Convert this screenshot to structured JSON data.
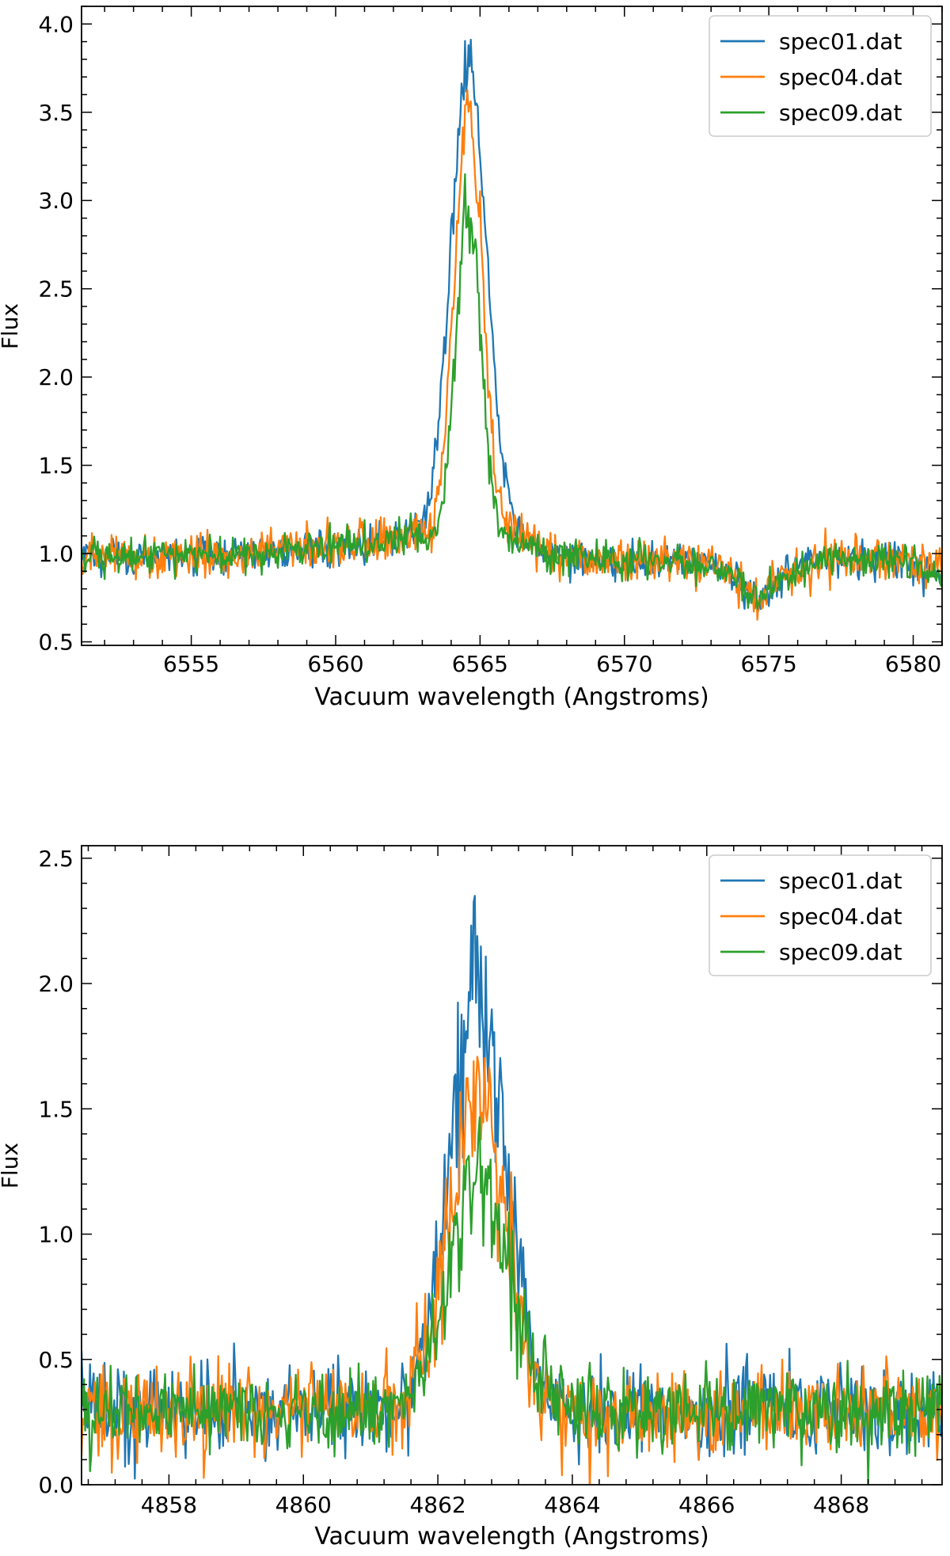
{
  "chart_data": [
    {
      "type": "line",
      "title": "",
      "xlabel": "Vacuum wavelength (Angstroms)",
      "ylabel": "Flux",
      "xlim": [
        6551.2,
        6581.0
      ],
      "ylim": [
        0.48,
        4.1
      ],
      "xticks": [
        6555,
        6560,
        6565,
        6570,
        6575,
        6580
      ],
      "xtick_labels": [
        "6555",
        "6560",
        "6565",
        "6570",
        "6575",
        "6580"
      ],
      "yticks": [
        0.5,
        1.0,
        1.5,
        2.0,
        2.5,
        3.0,
        3.5,
        4.0
      ],
      "ytick_labels": [
        "0.5",
        "1.0",
        "1.5",
        "2.0",
        "2.5",
        "3.0",
        "3.5",
        "4.0"
      ],
      "legend_position": "top-right",
      "line_center": 6564.6,
      "x_step": 0.04,
      "continuum_points": [
        [
          6551.2,
          0.98
        ],
        [
          6556.0,
          0.99
        ],
        [
          6560.0,
          1.04
        ],
        [
          6562.5,
          1.1
        ],
        [
          6566.2,
          1.1
        ],
        [
          6567.5,
          1.0
        ],
        [
          6570.0,
          0.95
        ],
        [
          6572.0,
          0.96
        ],
        [
          6573.5,
          0.9
        ],
        [
          6574.6,
          0.74
        ],
        [
          6575.6,
          0.88
        ],
        [
          6577.0,
          0.98
        ],
        [
          6579.0,
          0.98
        ],
        [
          6581.0,
          0.88
        ]
      ],
      "series": [
        {
          "name": "spec01.dat",
          "color": "#1f77b4",
          "peak": 2.67,
          "sigma": 0.62,
          "noise": 0.05,
          "peak_noise": 0.06
        },
        {
          "name": "spec04.dat",
          "color": "#ff7f0e",
          "peak": 2.4,
          "sigma": 0.48,
          "noise": 0.06,
          "peak_noise": 0.07
        },
        {
          "name": "spec09.dat",
          "color": "#2ca02c",
          "peak": 1.92,
          "sigma": 0.42,
          "noise": 0.05,
          "peak_noise": 0.06
        }
      ]
    },
    {
      "type": "line",
      "title": "",
      "xlabel": "Vacuum wavelength (Angstroms)",
      "ylabel": "Flux",
      "xlim": [
        4856.7,
        4869.5
      ],
      "ylim": [
        0.0,
        2.55
      ],
      "xticks": [
        4858,
        4860,
        4862,
        4864,
        4866,
        4868
      ],
      "xtick_labels": [
        "4858",
        "4860",
        "4862",
        "4864",
        "4866",
        "4868"
      ],
      "yticks": [
        0.0,
        0.5,
        1.0,
        1.5,
        2.0,
        2.5
      ],
      "ytick_labels": [
        "0.0",
        "0.5",
        "1.0",
        "1.5",
        "2.0",
        "2.5"
      ],
      "legend_position": "top-right",
      "line_center": 4862.6,
      "x_step": 0.018,
      "continuum_points": [
        [
          4856.7,
          0.3
        ],
        [
          4869.5,
          0.3
        ]
      ],
      "series": [
        {
          "name": "spec01.dat",
          "color": "#1f77b4",
          "peak": 1.68,
          "sigma": 0.42,
          "noise": 0.09,
          "peak_noise": 0.09
        },
        {
          "name": "spec04.dat",
          "color": "#ff7f0e",
          "peak": 1.27,
          "sigma": 0.42,
          "noise": 0.09,
          "peak_noise": 0.08
        },
        {
          "name": "spec09.dat",
          "color": "#2ca02c",
          "peak": 0.92,
          "sigma": 0.44,
          "noise": 0.08,
          "peak_noise": 0.06
        }
      ]
    }
  ]
}
